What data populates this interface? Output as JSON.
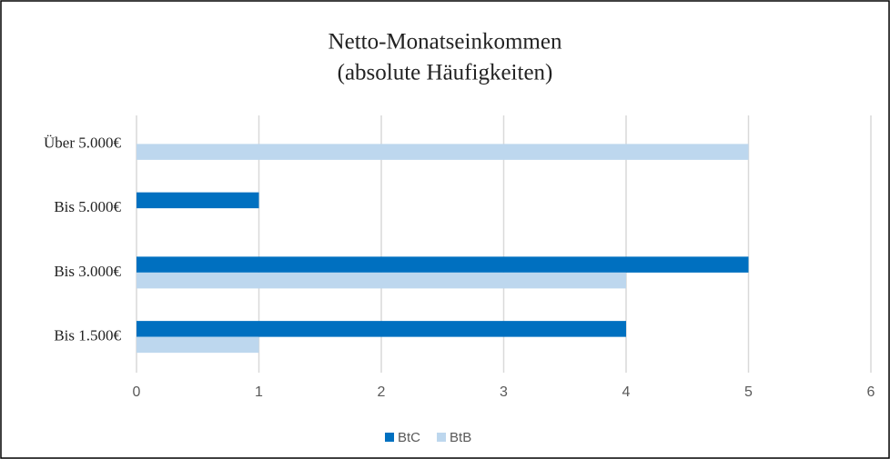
{
  "chart_data": {
    "type": "bar",
    "orientation": "horizontal",
    "title": "Netto-Monatseinkommen",
    "subtitle": "(absolute Häufigkeiten)",
    "categories": [
      "Bis 1.500€",
      "Bis 3.000€",
      "Bis 5.000€",
      "Über 5.000€"
    ],
    "series": [
      {
        "name": "BtC",
        "color": "#0070c0",
        "values": [
          4,
          5,
          1,
          0
        ]
      },
      {
        "name": "BtB",
        "color": "#bdd7ee",
        "values": [
          1,
          4,
          0,
          5
        ]
      }
    ],
    "xlim": [
      0,
      6
    ],
    "xticks": [
      0,
      1,
      2,
      3,
      4,
      5,
      6
    ],
    "grid": true,
    "legend": "bottom"
  }
}
